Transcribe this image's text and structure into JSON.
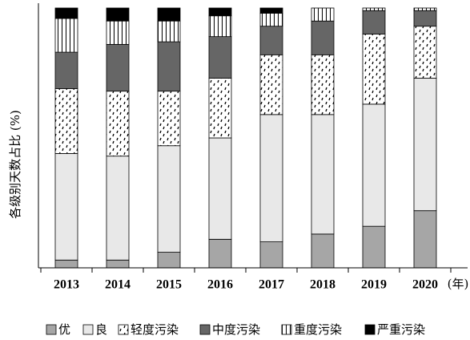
{
  "chart_data": {
    "type": "stacked_bar",
    "ylabel": "各级别天数占比 (%)",
    "xlabel": "(年)",
    "categories": [
      "2013",
      "2014",
      "2015",
      "2016",
      "2017",
      "2018",
      "2019",
      "2020"
    ],
    "ylim": [
      0,
      100
    ],
    "series": [
      {
        "name": "优",
        "color": "#a6a6a6",
        "pattern": "solid",
        "values": [
          3,
          3,
          6,
          11,
          10,
          13,
          16,
          22
        ]
      },
      {
        "name": "良",
        "color": "#e8e8e8",
        "pattern": "solid",
        "values": [
          41,
          40,
          41,
          39,
          49,
          46,
          47,
          51
        ]
      },
      {
        "name": "轻度污染",
        "color": "#000000",
        "pattern": "dots",
        "values": [
          25,
          25,
          21,
          23,
          23,
          23,
          27,
          20
        ]
      },
      {
        "name": "中度污染",
        "color": "#666666",
        "pattern": "solid",
        "values": [
          14,
          18,
          19,
          16,
          11,
          13,
          9,
          6
        ]
      },
      {
        "name": "重度污染",
        "color": "#000000",
        "pattern": "vlines",
        "values": [
          13,
          9,
          8,
          8,
          5,
          5,
          1,
          1
        ]
      },
      {
        "name": "严重污染",
        "color": "#000000",
        "pattern": "solid",
        "values": [
          4,
          5,
          5,
          3,
          2,
          0,
          0,
          0
        ]
      }
    ]
  }
}
